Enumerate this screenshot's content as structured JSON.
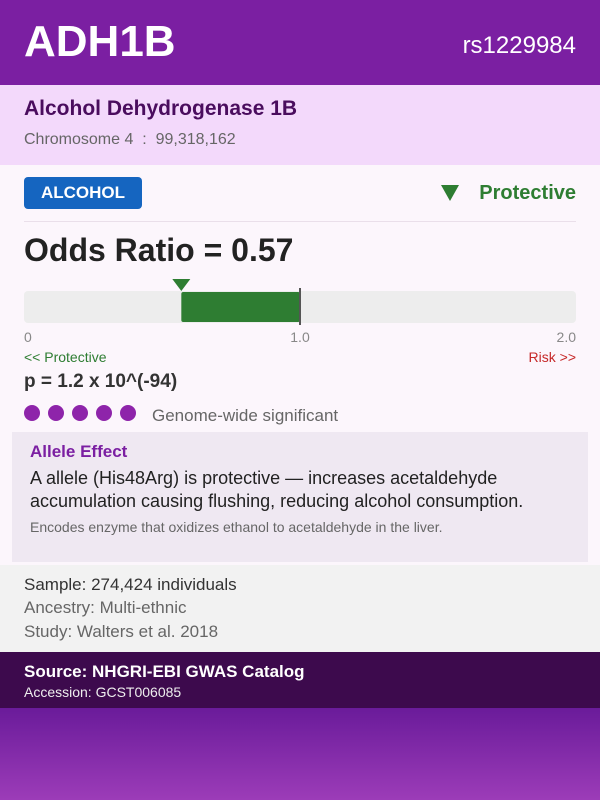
{
  "header": {
    "gene": "ADH1B",
    "rsid": "rs1229984"
  },
  "subheader": {
    "name": "Alcohol Dehydrogenase 1B",
    "chromosome": "Chromosome 4",
    "separator": ":",
    "position": "99,318,162"
  },
  "badge": "ALCOHOL",
  "effect": "Protective",
  "odds_ratio": {
    "label": "Odds Ratio =",
    "value": 0.57,
    "lim": [
      0,
      2
    ],
    "ticks": [
      0,
      {
        "value": 1,
        "label": "1.0"
      },
      {
        "value": 2,
        "label": "2.0"
      }
    ],
    "left_label": "<< Protective",
    "right_label": "Risk >>"
  },
  "p_value": "p = 1.2 x 10^(-94)",
  "significance": {
    "dots": 5,
    "label": "Genome-wide significant"
  },
  "allele_effect": {
    "title": "Allele Effect",
    "lines": [
      "A allele (His48Arg) is protective — increases acetaldehyde",
      "accumulation causing flushing, reducing alcohol consumption."
    ],
    "note": "Encodes enzyme that oxidizes ethanol to acetaldehyde in the liver."
  },
  "study": [
    "Sample: 274,424 individuals",
    "Ancestry: Multi-ethnic",
    "Study: Walters et al. 2018"
  ],
  "source": {
    "title": "Source: NHGRI-EBI GWAS Catalog",
    "accession": "Accession: GCST006085"
  }
}
